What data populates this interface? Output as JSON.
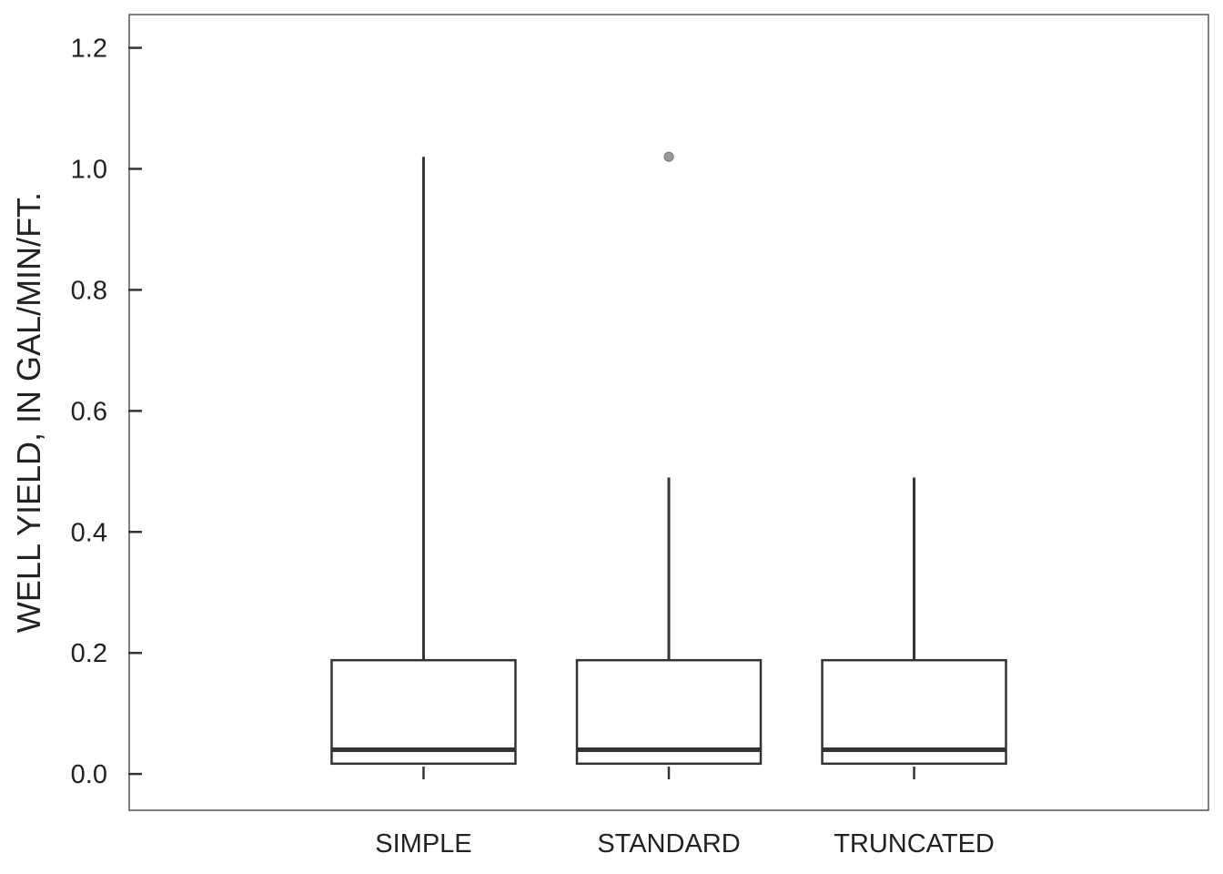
{
  "chart_data": {
    "type": "box",
    "ylabel": "WELL YIELD, IN GAL/MIN/FT.",
    "xlabel": "",
    "ylim": [
      -0.06,
      1.255
    ],
    "y_ticks": [
      0.0,
      0.2,
      0.4,
      0.6,
      0.8,
      1.0,
      1.2
    ],
    "y_tick_labels": [
      "0.0",
      "0.2",
      "0.4",
      "0.6",
      "0.8",
      "1.0",
      "1.2"
    ],
    "grid": false,
    "categories": [
      "SIMPLE",
      "STANDARD",
      "TRUNCATED"
    ],
    "boxes": [
      {
        "name": "SIMPLE",
        "whisker_low": 0.017,
        "q1": 0.017,
        "median": 0.04,
        "q3": 0.188,
        "whisker_high": 1.02,
        "outliers": []
      },
      {
        "name": "STANDARD",
        "whisker_low": 0.017,
        "q1": 0.017,
        "median": 0.04,
        "q3": 0.188,
        "whisker_high": 0.49,
        "outliers": [
          1.02
        ]
      },
      {
        "name": "TRUNCATED",
        "whisker_low": 0.017,
        "q1": 0.017,
        "median": 0.04,
        "q3": 0.188,
        "whisker_high": 0.49,
        "outliers": []
      }
    ],
    "colors": {
      "line": "#333333",
      "outlier": "#999999",
      "frame": "#555555"
    }
  }
}
